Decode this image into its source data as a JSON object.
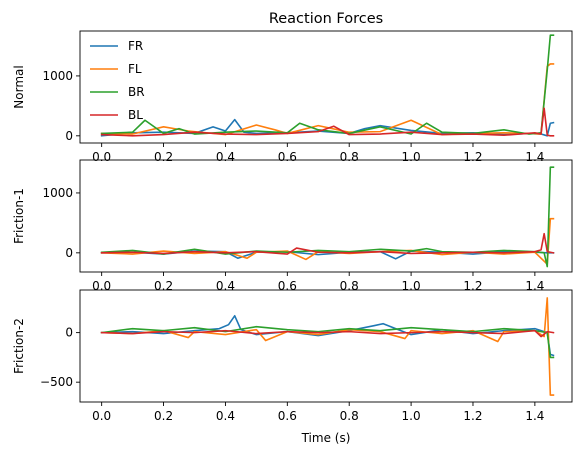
{
  "chart_data": [
    {
      "type": "line",
      "title": "Reaction Forces",
      "ylabel": "Normal",
      "xlabel": "",
      "xlim": [
        -0.07,
        1.52
      ],
      "ylim": [
        -120,
        1750
      ],
      "xticks": [
        0.0,
        0.2,
        0.4,
        0.6,
        0.8,
        1.0,
        1.2,
        1.4
      ],
      "xtick_labels": [
        "0.0",
        "0.2",
        "0.4",
        "0.6",
        "0.8",
        "1.0",
        "1.2",
        "1.4"
      ],
      "yticks": [
        0,
        1000
      ],
      "ytick_labels": [
        "0",
        "1000"
      ],
      "grid": false,
      "legend_placement": "top-left",
      "series": [
        {
          "name": "FR",
          "color": "#1f77b4",
          "x": [
            0.0,
            0.1,
            0.2,
            0.3,
            0.36,
            0.4,
            0.43,
            0.46,
            0.5,
            0.6,
            0.7,
            0.8,
            0.85,
            0.9,
            1.0,
            1.1,
            1.2,
            1.3,
            1.38,
            1.42,
            1.44,
            1.45,
            1.46
          ],
          "y": [
            0,
            50,
            60,
            40,
            150,
            80,
            270,
            60,
            40,
            50,
            80,
            40,
            120,
            170,
            90,
            40,
            50,
            20,
            40,
            30,
            0,
            210,
            220
          ]
        },
        {
          "name": "FL",
          "color": "#ff7f0e",
          "x": [
            0.0,
            0.1,
            0.2,
            0.28,
            0.4,
            0.5,
            0.56,
            0.6,
            0.7,
            0.8,
            0.9,
            1.0,
            1.1,
            1.2,
            1.3,
            1.38,
            1.42,
            1.44,
            1.45,
            1.46
          ],
          "y": [
            40,
            30,
            150,
            80,
            20,
            180,
            100,
            40,
            170,
            60,
            70,
            260,
            20,
            40,
            50,
            40,
            30,
            1160,
            1200,
            1200
          ]
        },
        {
          "name": "BR",
          "color": "#2ca02c",
          "x": [
            0.0,
            0.1,
            0.14,
            0.2,
            0.25,
            0.3,
            0.4,
            0.5,
            0.6,
            0.64,
            0.7,
            0.8,
            0.9,
            1.0,
            1.05,
            1.1,
            1.2,
            1.3,
            1.38,
            1.42,
            1.44,
            1.45,
            1.46
          ],
          "y": [
            40,
            60,
            260,
            40,
            120,
            30,
            60,
            80,
            50,
            210,
            100,
            40,
            150,
            30,
            210,
            60,
            40,
            100,
            30,
            50,
            1100,
            1680,
            1680
          ]
        },
        {
          "name": "BL",
          "color": "#d62728",
          "x": [
            0.0,
            0.1,
            0.2,
            0.3,
            0.4,
            0.5,
            0.6,
            0.7,
            0.75,
            0.8,
            0.9,
            1.0,
            1.1,
            1.2,
            1.3,
            1.4,
            1.42,
            1.43,
            1.44,
            1.45,
            1.46
          ],
          "y": [
            20,
            0,
            20,
            60,
            30,
            20,
            40,
            70,
            160,
            20,
            30,
            60,
            20,
            30,
            10,
            50,
            30,
            460,
            10,
            0,
            0
          ]
        }
      ]
    },
    {
      "type": "line",
      "title": "",
      "ylabel": "Friction-1",
      "xlabel": "",
      "xlim": [
        -0.07,
        1.52
      ],
      "ylim": [
        -320,
        1550
      ],
      "xticks": [
        0.0,
        0.2,
        0.4,
        0.6,
        0.8,
        1.0,
        1.2,
        1.4
      ],
      "xtick_labels": [
        "0.0",
        "0.2",
        "0.4",
        "0.6",
        "0.8",
        "1.0",
        "1.2",
        "1.4"
      ],
      "yticks": [
        0,
        1000
      ],
      "ytick_labels": [
        "0",
        "1000"
      ],
      "grid": false,
      "series": [
        {
          "name": "FR",
          "color": "#1f77b4",
          "x": [
            0.0,
            0.1,
            0.2,
            0.3,
            0.4,
            0.44,
            0.5,
            0.6,
            0.7,
            0.8,
            0.9,
            0.95,
            1.0,
            1.1,
            1.2,
            1.3,
            1.4,
            1.44,
            1.45,
            1.46
          ],
          "y": [
            0,
            10,
            -20,
            30,
            20,
            -90,
            10,
            20,
            -30,
            10,
            20,
            -100,
            30,
            10,
            -20,
            20,
            10,
            0,
            0,
            0
          ]
        },
        {
          "name": "FL",
          "color": "#ff7f0e",
          "x": [
            0.0,
            0.1,
            0.2,
            0.3,
            0.4,
            0.47,
            0.5,
            0.6,
            0.66,
            0.7,
            0.8,
            0.9,
            1.0,
            1.1,
            1.2,
            1.3,
            1.4,
            1.44,
            1.45,
            1.46
          ],
          "y": [
            0,
            -20,
            30,
            -10,
            20,
            -90,
            10,
            30,
            -110,
            20,
            -10,
            20,
            40,
            -30,
            10,
            -20,
            10,
            -190,
            570,
            570
          ]
        },
        {
          "name": "BR",
          "color": "#2ca02c",
          "x": [
            0.0,
            0.1,
            0.2,
            0.3,
            0.4,
            0.5,
            0.6,
            0.7,
            0.8,
            0.9,
            1.0,
            1.05,
            1.1,
            1.2,
            1.3,
            1.4,
            1.43,
            1.44,
            1.45,
            1.46
          ],
          "y": [
            10,
            40,
            -20,
            60,
            -20,
            30,
            10,
            40,
            20,
            60,
            30,
            70,
            20,
            10,
            40,
            20,
            0,
            -230,
            1430,
            1430
          ]
        },
        {
          "name": "BL",
          "color": "#d62728",
          "x": [
            0.0,
            0.1,
            0.2,
            0.3,
            0.4,
            0.5,
            0.6,
            0.63,
            0.7,
            0.8,
            0.9,
            1.0,
            1.1,
            1.2,
            1.3,
            1.4,
            1.42,
            1.43,
            1.44,
            1.46
          ],
          "y": [
            0,
            10,
            -10,
            20,
            0,
            20,
            -20,
            80,
            10,
            0,
            20,
            -10,
            0,
            10,
            0,
            20,
            50,
            320,
            20,
            0
          ]
        }
      ]
    },
    {
      "type": "line",
      "title": "",
      "ylabel": "Friction-2",
      "xlabel": "Time (s)",
      "xlim": [
        -0.07,
        1.52
      ],
      "ylim": [
        -700,
        430
      ],
      "xticks": [
        0.0,
        0.2,
        0.4,
        0.6,
        0.8,
        1.0,
        1.2,
        1.4
      ],
      "xtick_labels": [
        "0.0",
        "0.2",
        "0.4",
        "0.6",
        "0.8",
        "1.0",
        "1.2",
        "1.4"
      ],
      "yticks": [
        -500,
        0
      ],
      "ytick_labels": [
        "−500",
        "0"
      ],
      "grid": false,
      "series": [
        {
          "name": "FR",
          "color": "#1f77b4",
          "x": [
            0.0,
            0.1,
            0.2,
            0.3,
            0.38,
            0.41,
            0.43,
            0.45,
            0.5,
            0.6,
            0.7,
            0.8,
            0.88,
            0.91,
            0.95,
            1.0,
            1.1,
            1.2,
            1.3,
            1.4,
            1.44,
            1.45,
            1.46
          ],
          "y": [
            0,
            10,
            -10,
            20,
            40,
            80,
            170,
            30,
            -20,
            10,
            -30,
            20,
            70,
            90,
            40,
            -20,
            30,
            -10,
            20,
            40,
            0,
            -220,
            -230
          ]
        },
        {
          "name": "FL",
          "color": "#ff7f0e",
          "x": [
            0.0,
            0.1,
            0.2,
            0.28,
            0.3,
            0.4,
            0.5,
            0.53,
            0.6,
            0.7,
            0.8,
            0.9,
            0.98,
            1.0,
            1.1,
            1.2,
            1.28,
            1.3,
            1.4,
            1.43,
            1.44,
            1.45,
            1.46
          ],
          "y": [
            0,
            -10,
            20,
            -50,
            10,
            -20,
            30,
            -80,
            10,
            -20,
            30,
            10,
            -60,
            20,
            -10,
            20,
            -90,
            10,
            20,
            -40,
            350,
            -630,
            -630
          ]
        },
        {
          "name": "BR",
          "color": "#2ca02c",
          "x": [
            0.0,
            0.1,
            0.2,
            0.3,
            0.4,
            0.5,
            0.6,
            0.7,
            0.8,
            0.9,
            1.0,
            1.1,
            1.2,
            1.3,
            1.4,
            1.44,
            1.45,
            1.46
          ],
          "y": [
            0,
            40,
            20,
            50,
            10,
            60,
            30,
            10,
            40,
            20,
            50,
            30,
            10,
            40,
            20,
            0,
            -250,
            -250
          ]
        },
        {
          "name": "BL",
          "color": "#d62728",
          "x": [
            0.0,
            0.1,
            0.2,
            0.3,
            0.4,
            0.5,
            0.6,
            0.7,
            0.8,
            0.9,
            1.0,
            1.1,
            1.2,
            1.3,
            1.4,
            1.42,
            1.44,
            1.46
          ],
          "y": [
            0,
            -10,
            10,
            0,
            20,
            -10,
            10,
            0,
            10,
            -10,
            0,
            10,
            0,
            -10,
            20,
            -40,
            10,
            0
          ]
        }
      ]
    }
  ]
}
